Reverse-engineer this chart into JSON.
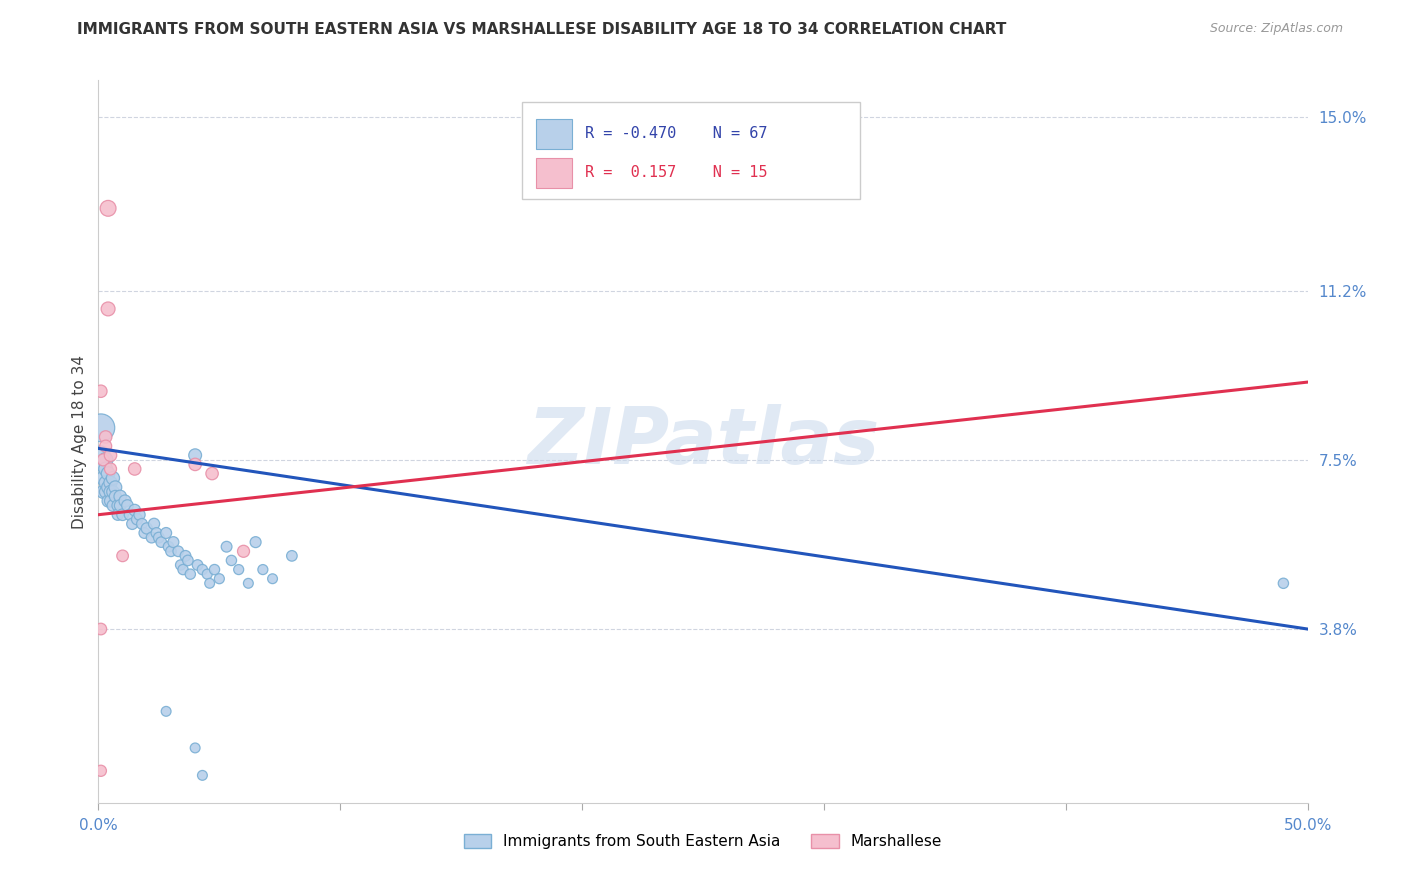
{
  "title": "IMMIGRANTS FROM SOUTH EASTERN ASIA VS MARSHALLESE DISABILITY AGE 18 TO 34 CORRELATION CHART",
  "source": "Source: ZipAtlas.com",
  "ylabel": "Disability Age 18 to 34",
  "xlim": [
    0,
    0.5
  ],
  "ylim": [
    0,
    0.158
  ],
  "ytick_labels_right": [
    "3.8%",
    "7.5%",
    "11.2%",
    "15.0%"
  ],
  "ytick_vals_right": [
    0.038,
    0.075,
    0.112,
    0.15
  ],
  "blue_color": "#b8d0ea",
  "pink_color": "#f5bfce",
  "blue_edge": "#7aafd4",
  "pink_edge": "#e890a8",
  "trend_blue": "#2255bb",
  "trend_pink": "#e03050",
  "watermark": "ZIPatlas",
  "blue_trend_x": [
    0.0,
    0.5
  ],
  "blue_trend_y": [
    0.0775,
    0.038
  ],
  "pink_trend_x": [
    0.0,
    0.5
  ],
  "pink_trend_y": [
    0.063,
    0.092
  ],
  "blue_scatter": [
    [
      0.001,
      0.082
    ],
    [
      0.001,
      0.076
    ],
    [
      0.002,
      0.074
    ],
    [
      0.002,
      0.071
    ],
    [
      0.002,
      0.068
    ],
    [
      0.003,
      0.075
    ],
    [
      0.003,
      0.073
    ],
    [
      0.003,
      0.07
    ],
    [
      0.003,
      0.068
    ],
    [
      0.004,
      0.072
    ],
    [
      0.004,
      0.069
    ],
    [
      0.004,
      0.066
    ],
    [
      0.005,
      0.07
    ],
    [
      0.005,
      0.068
    ],
    [
      0.005,
      0.066
    ],
    [
      0.006,
      0.071
    ],
    [
      0.006,
      0.068
    ],
    [
      0.006,
      0.065
    ],
    [
      0.007,
      0.069
    ],
    [
      0.007,
      0.067
    ],
    [
      0.008,
      0.065
    ],
    [
      0.008,
      0.063
    ],
    [
      0.009,
      0.067
    ],
    [
      0.009,
      0.065
    ],
    [
      0.01,
      0.063
    ],
    [
      0.011,
      0.066
    ],
    [
      0.012,
      0.065
    ],
    [
      0.013,
      0.063
    ],
    [
      0.014,
      0.061
    ],
    [
      0.015,
      0.064
    ],
    [
      0.016,
      0.062
    ],
    [
      0.017,
      0.063
    ],
    [
      0.018,
      0.061
    ],
    [
      0.019,
      0.059
    ],
    [
      0.02,
      0.06
    ],
    [
      0.022,
      0.058
    ],
    [
      0.023,
      0.061
    ],
    [
      0.024,
      0.059
    ],
    [
      0.025,
      0.058
    ],
    [
      0.026,
      0.057
    ],
    [
      0.028,
      0.059
    ],
    [
      0.029,
      0.056
    ],
    [
      0.03,
      0.055
    ],
    [
      0.031,
      0.057
    ],
    [
      0.033,
      0.055
    ],
    [
      0.034,
      0.052
    ],
    [
      0.035,
      0.051
    ],
    [
      0.036,
      0.054
    ],
    [
      0.037,
      0.053
    ],
    [
      0.038,
      0.05
    ],
    [
      0.04,
      0.076
    ],
    [
      0.041,
      0.052
    ],
    [
      0.043,
      0.051
    ],
    [
      0.045,
      0.05
    ],
    [
      0.046,
      0.048
    ],
    [
      0.048,
      0.051
    ],
    [
      0.05,
      0.049
    ],
    [
      0.053,
      0.056
    ],
    [
      0.055,
      0.053
    ],
    [
      0.058,
      0.051
    ],
    [
      0.062,
      0.048
    ],
    [
      0.065,
      0.057
    ],
    [
      0.068,
      0.051
    ],
    [
      0.072,
      0.049
    ],
    [
      0.08,
      0.054
    ],
    [
      0.49,
      0.048
    ],
    [
      0.028,
      0.02
    ],
    [
      0.04,
      0.012
    ],
    [
      0.043,
      0.006
    ]
  ],
  "blue_sizes": [
    400,
    180,
    120,
    100,
    90,
    110,
    100,
    90,
    80,
    95,
    85,
    75,
    90,
    85,
    75,
    90,
    80,
    70,
    85,
    75,
    70,
    65,
    80,
    70,
    70,
    75,
    70,
    65,
    65,
    70,
    65,
    65,
    60,
    60,
    65,
    60,
    65,
    60,
    60,
    58,
    62,
    58,
    58,
    62,
    58,
    55,
    55,
    60,
    58,
    55,
    85,
    58,
    55,
    52,
    50,
    55,
    52,
    60,
    55,
    52,
    50,
    62,
    52,
    50,
    58,
    55,
    50,
    50,
    50
  ],
  "pink_scatter": [
    [
      0.001,
      0.09
    ],
    [
      0.001,
      0.038
    ],
    [
      0.001,
      0.007
    ],
    [
      0.002,
      0.075
    ],
    [
      0.003,
      0.08
    ],
    [
      0.003,
      0.078
    ],
    [
      0.004,
      0.108
    ],
    [
      0.004,
      0.13
    ],
    [
      0.005,
      0.076
    ],
    [
      0.005,
      0.073
    ],
    [
      0.01,
      0.054
    ],
    [
      0.015,
      0.073
    ],
    [
      0.04,
      0.074
    ],
    [
      0.047,
      0.072
    ],
    [
      0.06,
      0.055
    ]
  ],
  "pink_sizes": [
    80,
    70,
    65,
    75,
    80,
    75,
    100,
    130,
    80,
    75,
    70,
    80,
    80,
    80,
    75
  ],
  "figsize": [
    14.06,
    8.92
  ],
  "dpi": 100
}
